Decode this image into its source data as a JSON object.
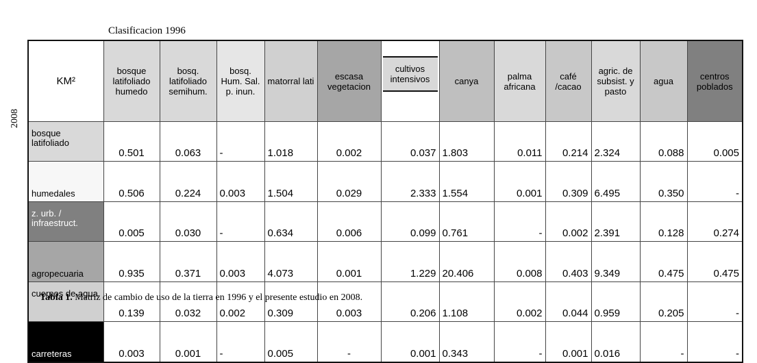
{
  "header": {
    "title": "Clasificacion 1996",
    "side_label": "2008",
    "corner": "KM²"
  },
  "table": {
    "columns": [
      "bosque latifoliado humedo",
      "bosq. latifoliado semihum.",
      "bosq. Hum. Sal. p. inun.",
      "matorral lati",
      "escasa vegetacion",
      "cultivos intensivos",
      "canya",
      "palma africana",
      "café /cacao",
      "agric. de subsist. y pasto",
      "agua",
      "centros poblados"
    ],
    "rows": [
      {
        "label": "bosque latifoliado",
        "values": [
          "0.501",
          "0.063",
          "-",
          "1.018",
          "0.002",
          "0.037",
          "1.803",
          "0.011",
          "0.214",
          "2.324",
          "0.088",
          "0.005"
        ]
      },
      {
        "label": "humedales",
        "values": [
          "0.506",
          "0.224",
          "0.003",
          "1.504",
          "0.029",
          "2.333",
          "1.554",
          "0.001",
          "0.309",
          "6.495",
          "0.350",
          "-"
        ]
      },
      {
        "label": "z. urb. / infraestruct.",
        "values": [
          "0.005",
          "0.030",
          "-",
          "0.634",
          "0.006",
          "0.099",
          "0.761",
          "-",
          "0.002",
          "2.391",
          "0.128",
          "0.274"
        ]
      },
      {
        "label": "agropecuaria",
        "values": [
          "0.935",
          "0.371",
          "0.003",
          "4.073",
          "0.001",
          "1.229",
          "20.406",
          "0.008",
          "0.403",
          "9.349",
          "0.475",
          "0.475"
        ]
      },
      {
        "label": "cuerpos de agua",
        "values": [
          "0.139",
          "0.032",
          "0.002",
          "0.309",
          "0.003",
          "0.206",
          "1.108",
          "0.002",
          "0.044",
          "0.959",
          "0.205",
          "-"
        ]
      },
      {
        "label": "carreteras",
        "values": [
          "0.003",
          "0.001",
          "-",
          "0.005",
          "-",
          "0.001",
          "0.343",
          "-",
          "0.001",
          "0.016",
          "-",
          "-"
        ]
      }
    ]
  },
  "caption": {
    "label": "Tabla 1.",
    "text": "Matriz de cambio de uso de la tierra en 1996  y el presente estudio en 2008."
  }
}
